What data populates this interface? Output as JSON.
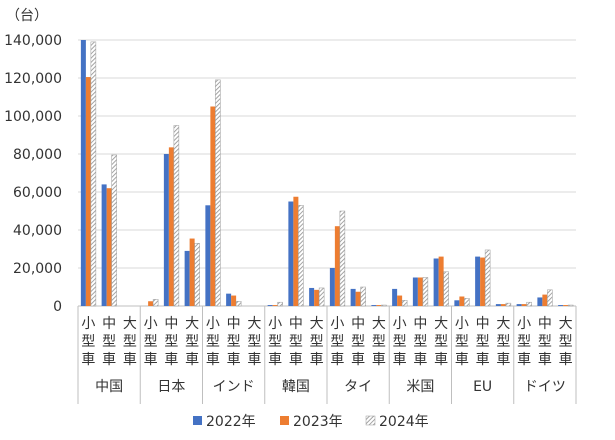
{
  "chart_data": {
    "type": "bar",
    "y_unit_label": "（台）",
    "ylim": [
      0,
      140000
    ],
    "y_ticks": [
      "0",
      "20,000",
      "40,000",
      "60,000",
      "80,000",
      "100,000",
      "120,000",
      "140,000"
    ],
    "grid": true,
    "legend_position": "bottom",
    "groups": [
      {
        "name": "中国",
        "categories": [
          "小型車",
          "中型車",
          "大型車"
        ]
      },
      {
        "name": "日本",
        "categories": [
          "小型車",
          "中型車",
          "大型車"
        ]
      },
      {
        "name": "インド",
        "categories": [
          "小型車",
          "中型車",
          "大型車"
        ]
      },
      {
        "name": "韓国",
        "categories": [
          "小型車",
          "中型車",
          "大型車"
        ]
      },
      {
        "name": "タイ",
        "categories": [
          "小型車",
          "中型車",
          "大型車"
        ]
      },
      {
        "name": "米国",
        "categories": [
          "小型車",
          "中型車",
          "大型車"
        ]
      },
      {
        "name": "EU",
        "categories": [
          "小型車",
          "中型車",
          "大型車"
        ]
      },
      {
        "name": "ドイツ",
        "categories": [
          "小型車",
          "中型車",
          "大型車"
        ]
      }
    ],
    "series": [
      {
        "name": "2022年",
        "color": "#4472c4",
        "pattern": "solid",
        "values": [
          140000,
          64000,
          0,
          0,
          80000,
          29000,
          53000,
          6500,
          0,
          500,
          55000,
          9500,
          20000,
          9000,
          500,
          9000,
          15000,
          25000,
          3000,
          26000,
          1000,
          1000,
          4500,
          500
        ]
      },
      {
        "name": "2023年",
        "color": "#ed7d31",
        "pattern": "solid",
        "values": [
          120500,
          62000,
          0,
          2500,
          83500,
          35500,
          105000,
          5500,
          0,
          500,
          57500,
          8500,
          42000,
          7500,
          500,
          5500,
          15000,
          26000,
          5000,
          25500,
          1000,
          1000,
          6000,
          500
        ]
      },
      {
        "name": "2024年",
        "color": "#a5a5a5",
        "pattern": "hatched",
        "values": [
          139000,
          79500,
          0,
          3500,
          95000,
          33000,
          119000,
          2500,
          0,
          2000,
          53000,
          9500,
          50000,
          10000,
          500,
          3000,
          15000,
          18000,
          4000,
          29500,
          1500,
          2000,
          8500,
          500
        ]
      }
    ]
  }
}
